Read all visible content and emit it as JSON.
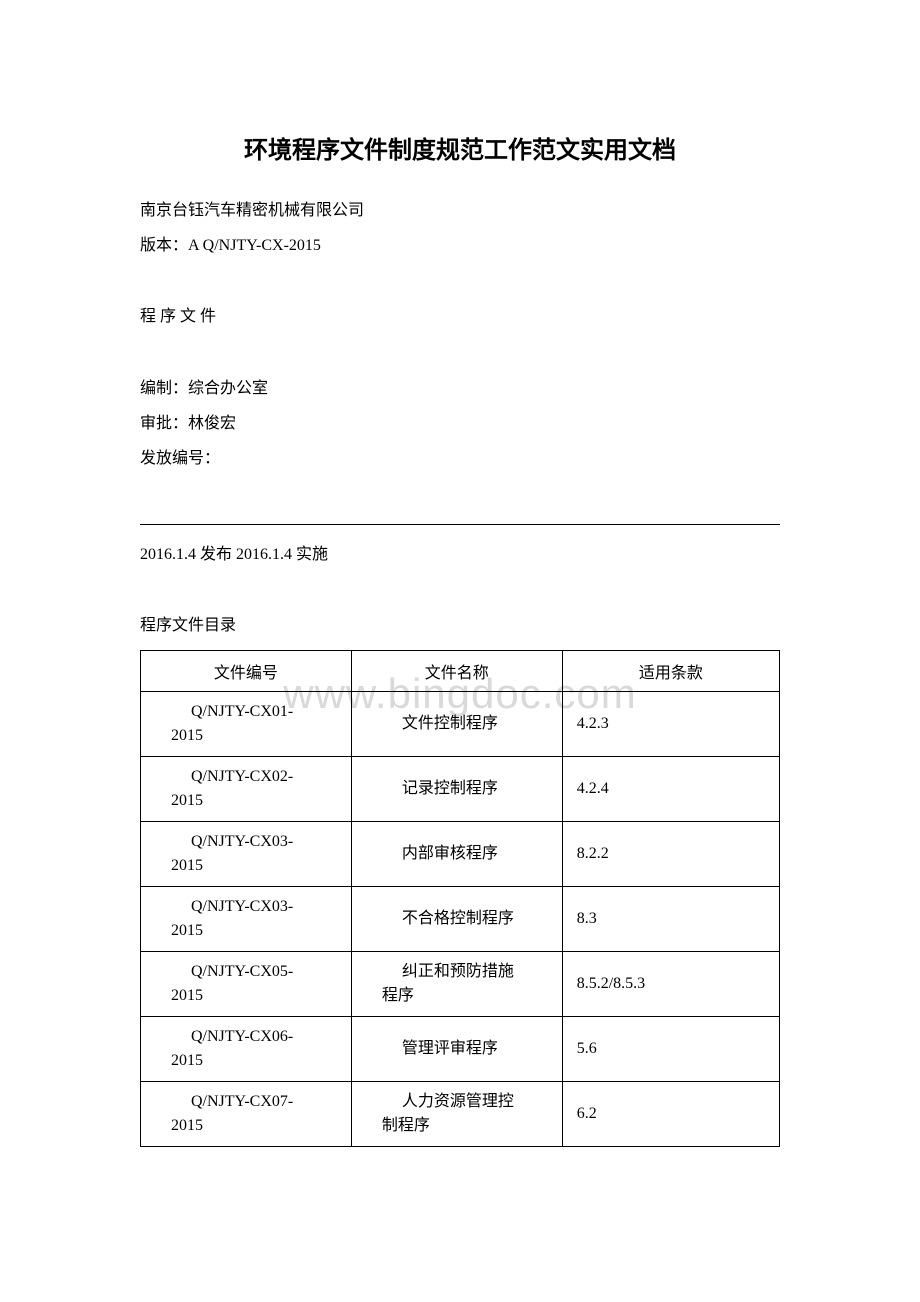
{
  "title": "环境程序文件制度规范工作范文实用文档",
  "company": "南京台钰汽车精密机械有限公司",
  "version_line": "版本：A Q/NJTY-CX-2015",
  "doc_type": "程 序 文 件",
  "compiled_by": "编制：综合办公室",
  "approved_by": "审批：林俊宏",
  "issue_no": "发放编号：",
  "release_line": "2016.1.4 发布 2016.1.4 实施",
  "toc_heading": "程序文件目录",
  "watermark": "www.bingdoc.com",
  "table": {
    "columns": [
      "文件编号",
      "文件名称",
      "适用条款"
    ],
    "col_widths_pct": [
      33,
      33,
      34
    ],
    "border_color": "#000000",
    "font_size_pt": 12,
    "rows": [
      {
        "code": "Q/NJTY-CX01-2015",
        "name": "文件控制程序",
        "clause": "4.2.3"
      },
      {
        "code": "Q/NJTY-CX02-2015",
        "name": "记录控制程序",
        "clause": "4.2.4"
      },
      {
        "code": "Q/NJTY-CX03-2015",
        "name": "内部审核程序",
        "clause": "8.2.2"
      },
      {
        "code": "Q/NJTY-CX03-2015",
        "name": "不合格控制程序",
        "clause": "8.3"
      },
      {
        "code": "Q/NJTY-CX05-2015",
        "name": "纠正和预防措施程序",
        "clause": "8.5.2/8.5.3"
      },
      {
        "code": "Q/NJTY-CX06-2015",
        "name": "管理评审程序",
        "clause": "5.6"
      },
      {
        "code": "Q/NJTY-CX07-2015",
        "name": "人力资源管理控制程序",
        "clause": "6.2"
      }
    ]
  },
  "colors": {
    "text": "#000000",
    "background": "#ffffff",
    "watermark": "#d9d9d9",
    "border": "#000000"
  }
}
